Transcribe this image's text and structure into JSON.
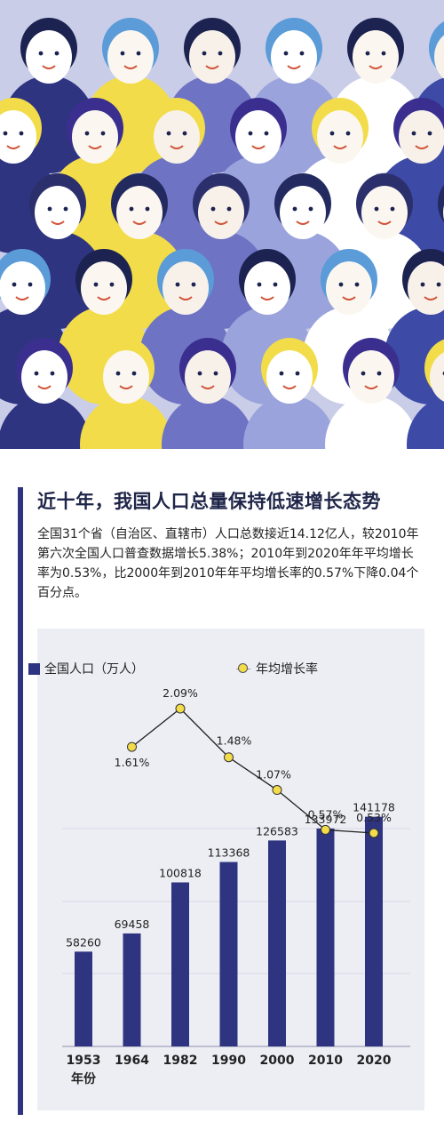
{
  "headline": "近十年，我国人口总量保持低速增长态势",
  "summary": "全国31个省（自治区、直辖市）人口总数接近14.12亿人，较2010年第六次全国人口普查数据增长5.38%；2010年到2020年年平均增长率为0.53%，比2000年到2010年年平均增长率的0.57%下降0.04个百分点。",
  "colors": {
    "accent": "#2f3480",
    "bar": "#2f3480",
    "rate_dot": "#f2dc4a",
    "panel_bg": "#edeef4",
    "crowd_bg": "#c9cde8"
  },
  "chart_data": {
    "type": "bar",
    "x_label": "年份",
    "categories": [
      "1953",
      "1964",
      "1982",
      "1990",
      "2000",
      "2010",
      "2020"
    ],
    "series": [
      {
        "name": "全国人口（万人）",
        "type": "bar",
        "values": [
          58260,
          69458,
          100818,
          113368,
          126583,
          133972,
          141178
        ]
      },
      {
        "name": "年均增长率",
        "type": "line",
        "x": [
          "1964",
          "1982",
          "1990",
          "2000",
          "2010",
          "2020"
        ],
        "values": [
          "1.61%",
          "2.09%",
          "1.48%",
          "1.07%",
          "0.57%",
          "0.53%"
        ]
      }
    ],
    "legend_position": "top-left",
    "grid": true
  }
}
